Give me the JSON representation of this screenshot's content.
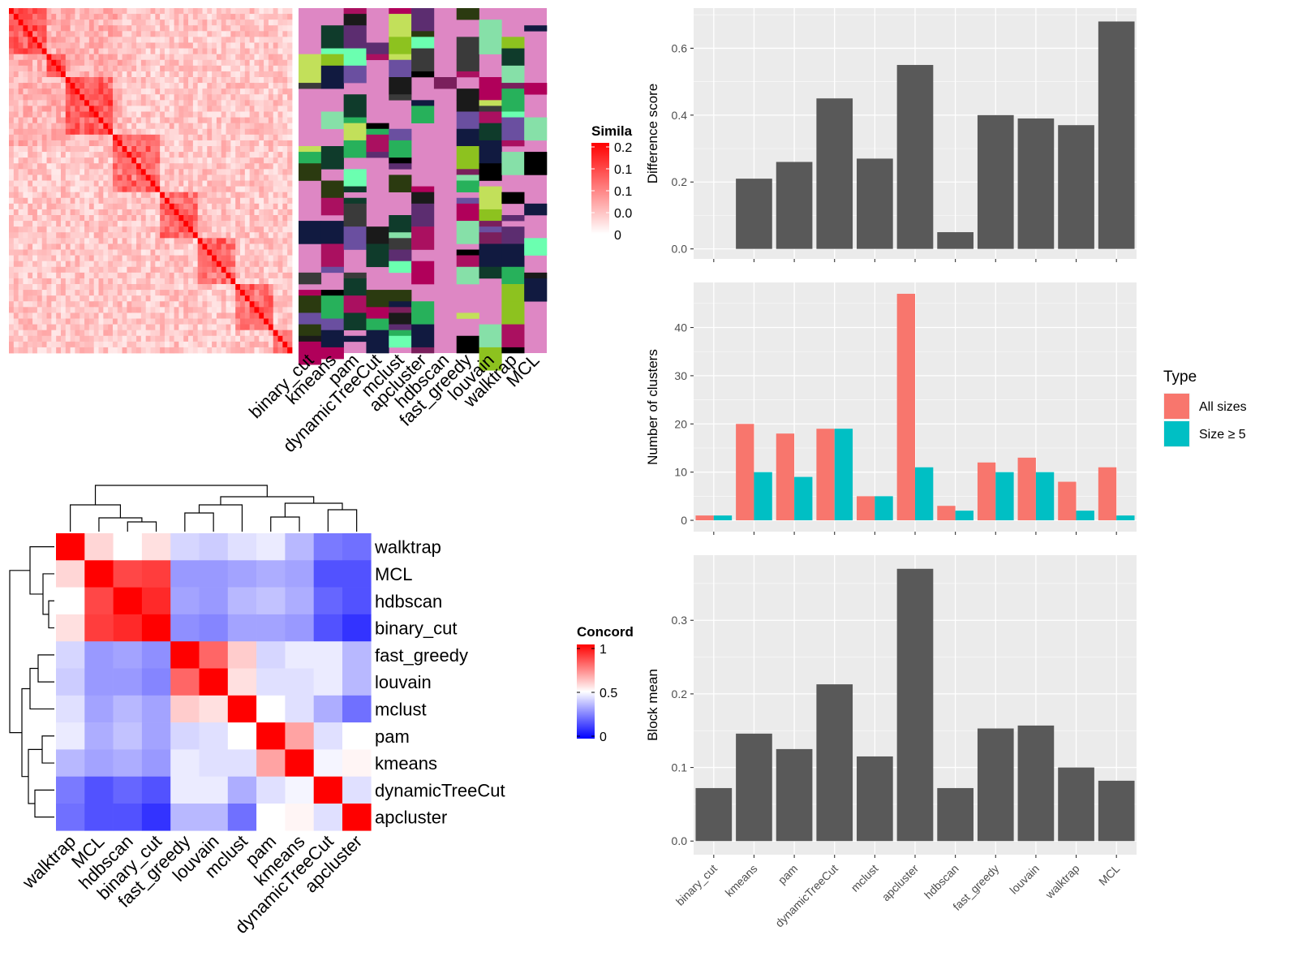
{
  "chart_data": [
    {
      "id": "similarity-heatmap",
      "type": "heatmap",
      "legend_title": "Simila",
      "legend_ticks": [
        "0.2",
        "0.1",
        "0.1",
        "0.0",
        "0"
      ],
      "annotation_columns": [
        "binary_cut",
        "kmeans",
        "pam",
        "dynamicTreeCut",
        "mclust",
        "apcluster",
        "hdbscan",
        "fast_greedy",
        "louvain",
        "walktrap",
        "MCL"
      ]
    },
    {
      "id": "concordance-heatmap",
      "type": "heatmap",
      "legend_title": "Concord",
      "legend_ticks": [
        "1",
        "0.5",
        "0"
      ],
      "rows": [
        "walktrap",
        "MCL",
        "hdbscan",
        "binary_cut",
        "fast_greedy",
        "louvain",
        "mclust",
        "pam",
        "kmeans",
        "dynamicTreeCut",
        "apcluster"
      ],
      "cols": [
        "walktrap",
        "MCL",
        "hdbscan",
        "binary_cut",
        "fast_greedy",
        "louvain",
        "mclust",
        "pam",
        "kmeans",
        "dynamicTreeCut",
        "apcluster"
      ],
      "values": [
        [
          1.0,
          0.58,
          0.5,
          0.56,
          0.42,
          0.4,
          0.44,
          0.46,
          0.36,
          0.24,
          0.22
        ],
        [
          0.58,
          1.0,
          0.86,
          0.88,
          0.3,
          0.3,
          0.32,
          0.34,
          0.32,
          0.16,
          0.16
        ],
        [
          0.5,
          0.86,
          1.0,
          0.92,
          0.32,
          0.3,
          0.36,
          0.38,
          0.34,
          0.2,
          0.16
        ],
        [
          0.56,
          0.88,
          0.92,
          1.0,
          0.28,
          0.26,
          0.32,
          0.32,
          0.3,
          0.16,
          0.1
        ],
        [
          0.42,
          0.3,
          0.32,
          0.28,
          1.0,
          0.8,
          0.6,
          0.42,
          0.46,
          0.46,
          0.36
        ],
        [
          0.4,
          0.3,
          0.3,
          0.26,
          0.8,
          1.0,
          0.56,
          0.44,
          0.44,
          0.46,
          0.36
        ],
        [
          0.44,
          0.32,
          0.36,
          0.32,
          0.6,
          0.56,
          1.0,
          0.5,
          0.44,
          0.34,
          0.22
        ],
        [
          0.46,
          0.34,
          0.38,
          0.32,
          0.42,
          0.44,
          0.5,
          1.0,
          0.68,
          0.44,
          0.5
        ],
        [
          0.36,
          0.32,
          0.34,
          0.3,
          0.46,
          0.44,
          0.44,
          0.68,
          1.0,
          0.48,
          0.52
        ],
        [
          0.24,
          0.16,
          0.2,
          0.16,
          0.46,
          0.46,
          0.34,
          0.44,
          0.48,
          1.0,
          0.44
        ],
        [
          0.22,
          0.16,
          0.16,
          0.1,
          0.36,
          0.36,
          0.22,
          0.5,
          0.52,
          0.44,
          1.0
        ]
      ],
      "color_scale": {
        "low": "#0000ff",
        "mid": "#ffffff",
        "high": "#ff0000"
      }
    },
    {
      "id": "difference-score-bar",
      "type": "bar",
      "categories": [
        "binary_cut",
        "kmeans",
        "pam",
        "dynamicTreeCut",
        "mclust",
        "apcluster",
        "hdbscan",
        "fast_greedy",
        "louvain",
        "walktrap",
        "MCL"
      ],
      "values": [
        0.0,
        0.21,
        0.26,
        0.45,
        0.27,
        0.55,
        0.05,
        0.4,
        0.39,
        0.37,
        0.68
      ],
      "ylabel": "Difference score",
      "ylim": [
        -0.03,
        0.72
      ],
      "yticks": [
        "0.0",
        "0.2",
        "0.4",
        "0.6"
      ],
      "bar_color": "#595959",
      "grid": true
    },
    {
      "id": "number-of-clusters-bar",
      "type": "bar",
      "categories": [
        "binary_cut",
        "kmeans",
        "pam",
        "dynamicTreeCut",
        "mclust",
        "apcluster",
        "hdbscan",
        "fast_greedy",
        "louvain",
        "walktrap",
        "MCL"
      ],
      "series": [
        {
          "name": "All sizes",
          "values": [
            1,
            20,
            18,
            19,
            5,
            47,
            3,
            12,
            13,
            8,
            11
          ],
          "color": "#f8766d"
        },
        {
          "name": "Size ≥ 5",
          "values": [
            1,
            10,
            9,
            19,
            5,
            11,
            2,
            10,
            10,
            2,
            1
          ],
          "color": "#00bfc4"
        }
      ],
      "ylabel": "Number of clusters",
      "ylim": [
        -2.35,
        49.35
      ],
      "yticks": [
        "0",
        "10",
        "20",
        "30",
        "40"
      ],
      "legend_title": "Type",
      "legend_position": "right",
      "grid": true
    },
    {
      "id": "block-mean-bar",
      "type": "bar",
      "categories": [
        "binary_cut",
        "kmeans",
        "pam",
        "dynamicTreeCut",
        "mclust",
        "apcluster",
        "hdbscan",
        "fast_greedy",
        "louvain",
        "walktrap",
        "MCL"
      ],
      "values": [
        0.072,
        0.146,
        0.125,
        0.213,
        0.115,
        0.37,
        0.072,
        0.153,
        0.157,
        0.1,
        0.082
      ],
      "ylabel": "Block mean",
      "ylim": [
        -0.0185,
        0.3885
      ],
      "yticks": [
        "0.0",
        "0.1",
        "0.2",
        "0.3"
      ],
      "bar_color": "#595959",
      "grid": true
    }
  ]
}
